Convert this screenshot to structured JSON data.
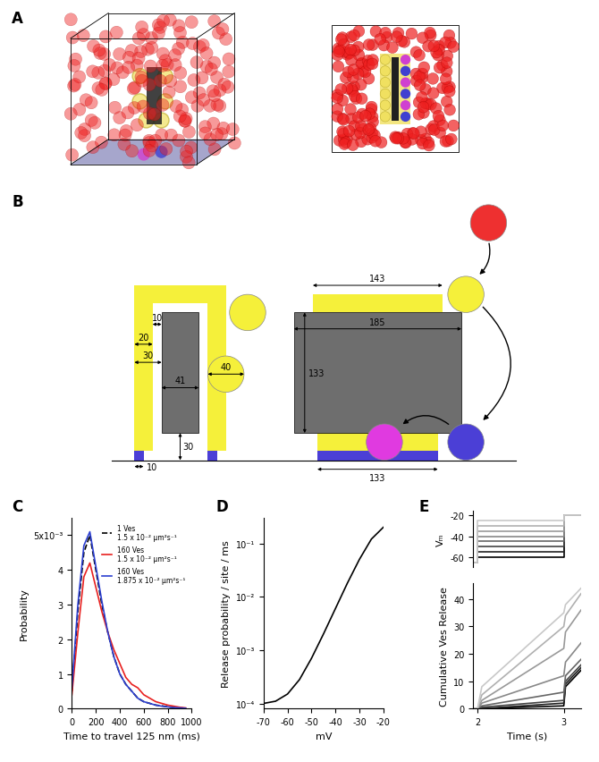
{
  "panel_labels": [
    "A",
    "B",
    "C",
    "D",
    "E"
  ],
  "diagram": {
    "side_view": {
      "inner_gap": 10,
      "wall": 20,
      "offset": 30,
      "core_width": 41,
      "vesicle_diameter": 40,
      "core_clearance": 30,
      "site_size": 10
    },
    "end_view": {
      "shell_width": 143,
      "core_length": 185,
      "core_height": 133,
      "site_row_length": 133
    }
  },
  "chart_data": [
    {
      "type": "line",
      "xlabel": "Time to travel 125 nm (ms)",
      "ylabel": "Probability",
      "x": [
        0,
        50,
        100,
        150,
        200,
        250,
        300,
        350,
        400,
        450,
        500,
        550,
        600,
        650,
        700,
        750,
        800,
        850,
        900,
        950
      ],
      "series": [
        {
          "name": "1 Ves\n1.5 x 10⁻² μm²s⁻¹",
          "color": "#000000",
          "line_style": "dashed",
          "values": [
            0.0005,
            0.0028,
            0.0045,
            0.005,
            0.004,
            0.003,
            0.0022,
            0.0015,
            0.001,
            0.0007,
            0.0005,
            0.0003,
            0.0002,
            0.00015,
            0.0001,
            8e-05,
            5e-05,
            3e-05,
            2e-05,
            1e-05
          ]
        },
        {
          "name": "160 Ves\n1.5 x 10⁻² μm²s⁻¹",
          "color": "#e8201f",
          "line_style": "solid",
          "values": [
            0.0004,
            0.0022,
            0.0038,
            0.0042,
            0.0035,
            0.0028,
            0.0022,
            0.0017,
            0.0013,
            0.0009,
            0.0007,
            0.0006,
            0.0004,
            0.0003,
            0.0002,
            0.00015,
            0.0001,
            7e-05,
            4e-05,
            2e-05
          ]
        },
        {
          "name": "160 Ves\n1.875 x 10⁻² μm²s⁻¹",
          "color": "#2c3fd1",
          "line_style": "solid",
          "values": [
            0.0006,
            0.003,
            0.0047,
            0.0051,
            0.0041,
            0.0031,
            0.0022,
            0.0015,
            0.001,
            0.0007,
            0.0005,
            0.0003,
            0.0002,
            0.00015,
            0.0001,
            7e-05,
            5e-05,
            3e-05,
            2e-05,
            1e-05
          ]
        }
      ],
      "xlim": [
        0,
        1000
      ],
      "xticks": [
        0,
        200,
        400,
        600,
        800,
        1000
      ],
      "ylim": [
        0,
        0.0055
      ],
      "yticks": [
        0,
        {
          "value": 0.001,
          "label": "1"
        },
        {
          "value": 0.002,
          "label": "2"
        },
        {
          "value": 0.003,
          "label": "3"
        },
        {
          "value": 0.004,
          "label": "4"
        },
        {
          "value": 0.005,
          "label": "5x10⁻³"
        }
      ],
      "legend": "upper right"
    },
    {
      "type": "line",
      "log": "y",
      "xlabel": "mV",
      "ylabel": "Release probability / site / ms",
      "x": [
        -70,
        -65,
        -60,
        -55,
        -50,
        -45,
        -40,
        -35,
        -30,
        -25,
        -20
      ],
      "series": [
        {
          "color": "#000000",
          "line_style": "solid",
          "values": [
            0.0001,
            0.00011,
            0.00015,
            0.00028,
            0.0007,
            0.002,
            0.006,
            0.018,
            0.05,
            0.12,
            0.2
          ]
        }
      ],
      "xlim": [
        -70,
        -20
      ],
      "xticks": [
        -70,
        -60,
        -50,
        -40,
        -30,
        -20
      ],
      "ylim": [
        8e-05,
        0.3
      ],
      "yticks": [
        {
          "value": 0.0001,
          "label": "10⁻⁴"
        },
        {
          "value": 0.001,
          "label": "10⁻³"
        },
        {
          "value": 0.01,
          "label": "10⁻²"
        },
        {
          "value": 0.1,
          "label": "10⁻¹"
        }
      ]
    },
    {
      "type": "line",
      "ylabel": "Vₘ",
      "tick_labels": "y",
      "x": [
        1.95,
        2.0,
        2.0,
        3.0,
        3.0,
        3.2
      ],
      "series": [
        {
          "color": "#000000",
          "line_style": "solid",
          "values": [
            -65,
            -65,
            -60,
            -60,
            -20,
            -20
          ]
        },
        {
          "color": "#222222",
          "line_style": "solid",
          "values": [
            -65,
            -65,
            -55,
            -55,
            -20,
            -20
          ]
        },
        {
          "color": "#444444",
          "line_style": "solid",
          "values": [
            -65,
            -65,
            -50,
            -50,
            -20,
            -20
          ]
        },
        {
          "color": "#666666",
          "line_style": "solid",
          "values": [
            -65,
            -65,
            -45,
            -45,
            -20,
            -20
          ]
        },
        {
          "color": "#888888",
          "line_style": "solid",
          "values": [
            -65,
            -65,
            -40,
            -40,
            -20,
            -20
          ]
        },
        {
          "color": "#999999",
          "line_style": "solid",
          "values": [
            -65,
            -65,
            -35,
            -35,
            -20,
            -20
          ]
        },
        {
          "color": "#b0b0b0",
          "line_style": "solid",
          "values": [
            -65,
            -65,
            -30,
            -30,
            -20,
            -20
          ]
        },
        {
          "color": "#c8c8c8",
          "line_style": "solid",
          "values": [
            -65,
            -65,
            -25,
            -25,
            -20,
            -20
          ]
        }
      ],
      "ylim": [
        -70,
        -15
      ],
      "yticks": [
        -60,
        -40,
        -20
      ]
    },
    {
      "type": "line",
      "xlabel": "Time (s)",
      "ylabel": "Cumulative Ves Release",
      "x": [
        1.95,
        2.0,
        2.05,
        3.0,
        3.02,
        3.2
      ],
      "series": [
        {
          "color": "#000000",
          "line_style": "solid",
          "values": [
            0,
            0,
            0,
            1,
            8,
            14
          ]
        },
        {
          "color": "#222222",
          "line_style": "solid",
          "values": [
            0,
            0,
            0,
            2,
            9,
            15
          ]
        },
        {
          "color": "#444444",
          "line_style": "solid",
          "values": [
            0,
            0,
            0.5,
            3,
            10,
            16
          ]
        },
        {
          "color": "#666666",
          "line_style": "solid",
          "values": [
            0,
            0,
            1,
            6,
            12,
            18
          ]
        },
        {
          "color": "#888888",
          "line_style": "solid",
          "values": [
            0,
            0,
            2,
            12,
            17,
            24
          ]
        },
        {
          "color": "#999999",
          "line_style": "solid",
          "values": [
            0,
            0,
            3,
            22,
            28,
            36
          ]
        },
        {
          "color": "#b0b0b0",
          "line_style": "solid",
          "values": [
            0,
            0,
            5,
            30,
            34,
            42
          ]
        },
        {
          "color": "#c8c8c8",
          "line_style": "solid",
          "values": [
            0,
            0,
            8,
            35,
            38,
            44
          ]
        }
      ],
      "xlim": [
        1.95,
        3.2
      ],
      "xticks": [
        2,
        3
      ],
      "ylim": [
        0,
        46
      ],
      "yticks": [
        0,
        10,
        20,
        30,
        40
      ]
    }
  ]
}
